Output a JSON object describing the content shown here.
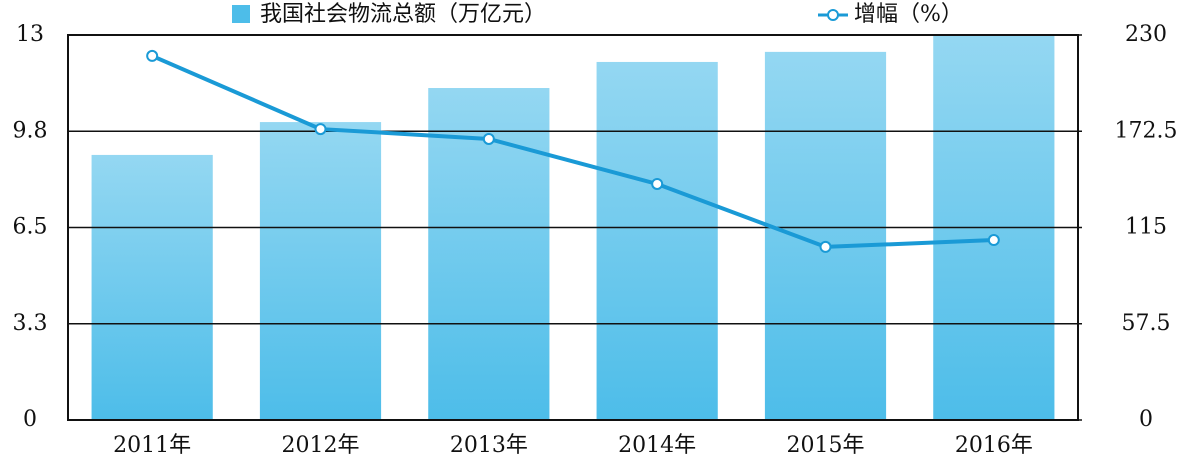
{
  "chart_data": {
    "type": "bar-line",
    "categories": [
      "2011年",
      "2012年",
      "2013年",
      "2014年",
      "2015年",
      "2016年"
    ],
    "series": [
      {
        "name": "我国社会物流总额（万亿元）",
        "type": "bar",
        "color": "#4dbde9",
        "values": [
          8.95,
          10.06,
          11.21,
          12.09,
          12.43,
          13.0
        ]
      },
      {
        "name": "增幅（%）",
        "type": "line",
        "axis": "y2",
        "color": "#1a9ad6",
        "values": [
          217.5,
          173.8,
          167.9,
          141.0,
          103.4,
          107.5
        ]
      }
    ],
    "ylim": [
      0,
      13
    ],
    "yticks": [
      0,
      {
        "value": 3.25,
        "label": "3.3"
      },
      6.5,
      {
        "value": 9.75,
        "label": "9.8"
      },
      13
    ],
    "y2lim": [
      0,
      230
    ],
    "y2ticks": [
      0,
      57.5,
      115,
      172.5,
      230
    ],
    "grid": true
  }
}
